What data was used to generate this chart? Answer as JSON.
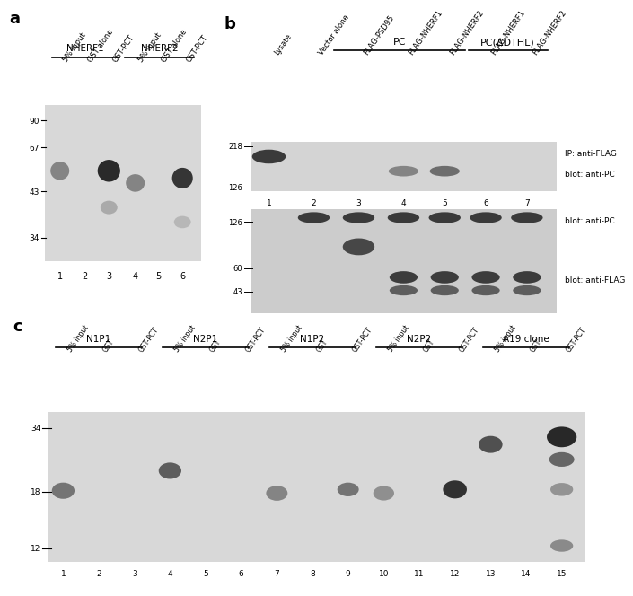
{
  "fig_width": 7.0,
  "fig_height": 6.48,
  "bg_color": "#ffffff",
  "panel_a": {
    "label": "a",
    "gel_color": "#d8d8d8",
    "lane_labels": [
      "5% Input",
      "GST alone",
      "GST-PCT",
      "5% Input",
      "GST alone",
      "GST-PCT"
    ],
    "lane_numbers": [
      "1",
      "2",
      "3",
      "4",
      "5",
      "6"
    ],
    "group_labels": [
      "NHERF1",
      "NHERF2"
    ],
    "mw_labels": [
      "90",
      "67",
      "43",
      "34"
    ]
  },
  "panel_b": {
    "label": "b",
    "top_gel_color": "#d4d4d4",
    "bottom_gel_color": "#cccccc",
    "lane_labels": [
      "Lysate",
      "Vector alone",
      "FLAG-PSD95",
      "FLAG-NHERF1",
      "FLAG-NHERF2",
      "FLAG-NHERF1",
      "FLAG-NHERF2"
    ],
    "lane_numbers": [
      "1",
      "2",
      "3",
      "4",
      "5",
      "6",
      "7"
    ],
    "group_labels": [
      "PC",
      "PC(ΔDTHL)"
    ],
    "mw_labels_top": [
      "218",
      "126"
    ],
    "mw_labels_bottom": [
      "126",
      "60",
      "43"
    ],
    "annot_top": [
      "IP: anti-FLAG",
      "blot: anti-PC"
    ],
    "annot_bottom": [
      "blot: anti-PC",
      "blot: anti-FLAG"
    ]
  },
  "panel_c": {
    "label": "c",
    "gel_color": "#d8d8d8",
    "lane_labels": [
      "5% input",
      "GST",
      "GST-PCT",
      "5% input",
      "GST",
      "GST-PCT",
      "5% input",
      "GST",
      "GST-PCT",
      "5% input",
      "GST",
      "GST-PCT",
      "5% input",
      "GST",
      "GST-PCT"
    ],
    "lane_numbers": [
      "1",
      "2",
      "3",
      "4",
      "5",
      "6",
      "7",
      "8",
      "9",
      "10",
      "11",
      "12",
      "13",
      "14",
      "15"
    ],
    "group_labels": [
      "N1P1",
      "N2P1",
      "N1P2",
      "N2P2",
      "A19 clone"
    ],
    "mw_labels": [
      "34",
      "18",
      "12"
    ]
  }
}
